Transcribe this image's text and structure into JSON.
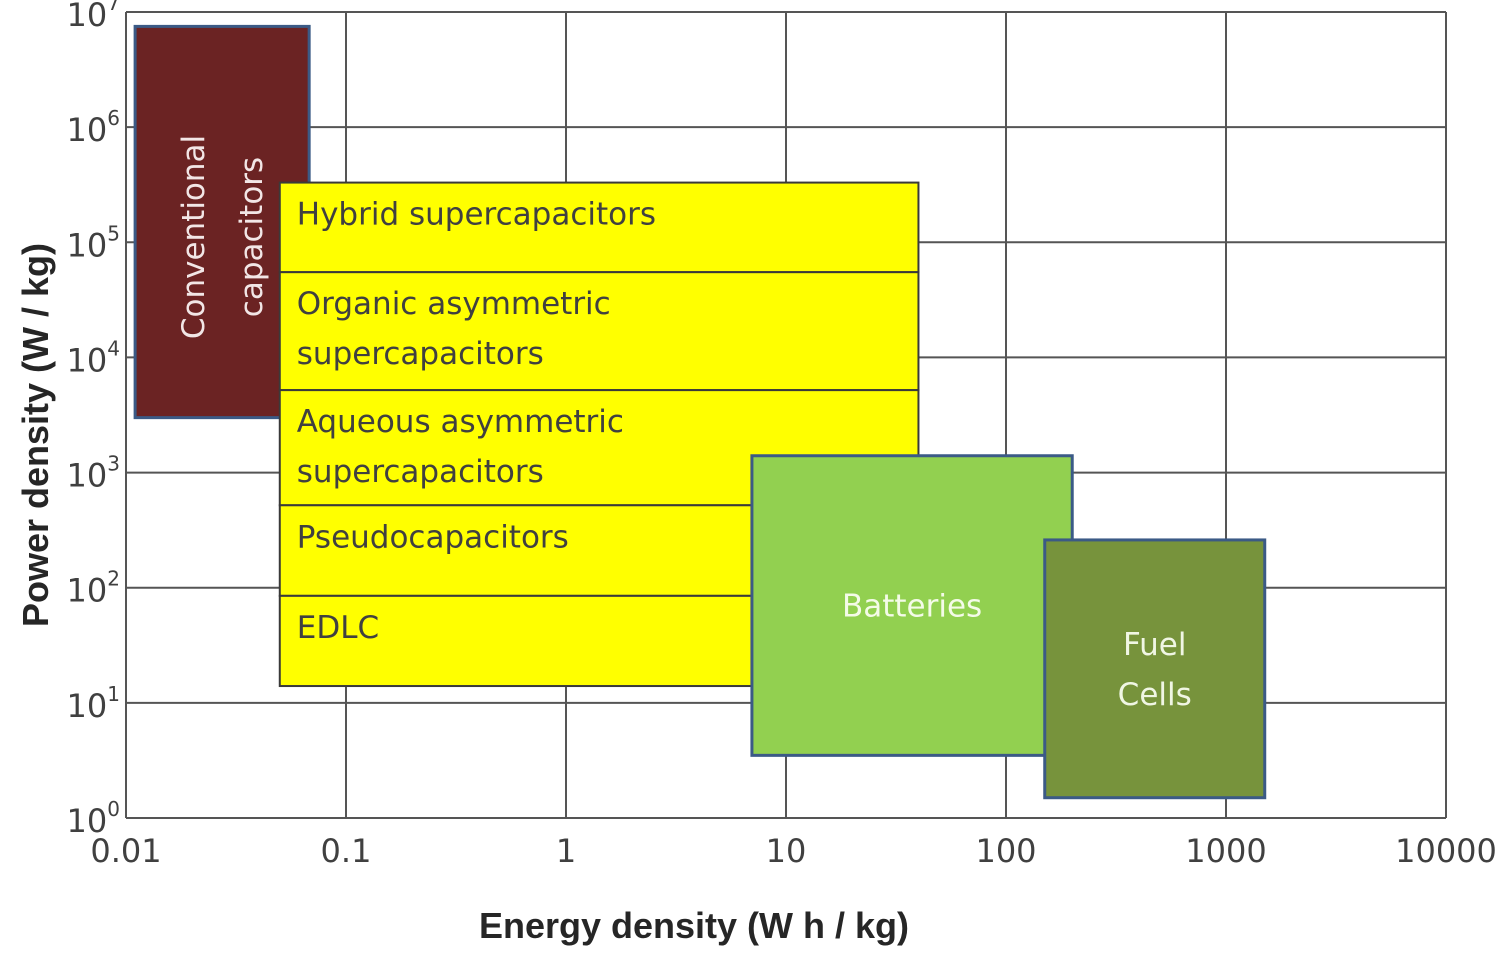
{
  "chart_data": {
    "type": "area",
    "title": "",
    "xlabel": "Energy density  (W h / kg)",
    "ylabel": "Power density (W / kg)",
    "xscale": "log",
    "yscale": "log",
    "xlim": [
      0.01,
      10000
    ],
    "ylim": [
      1,
      10000000
    ],
    "grid": true,
    "x_ticks": [
      "0.01",
      "0.1",
      "1",
      "10",
      "100",
      "1000",
      "10000"
    ],
    "y_ticks": [
      {
        "base": "10",
        "exp": "0"
      },
      {
        "base": "10",
        "exp": "1"
      },
      {
        "base": "10",
        "exp": "2"
      },
      {
        "base": "10",
        "exp": "3"
      },
      {
        "base": "10",
        "exp": "4"
      },
      {
        "base": "10",
        "exp": "5"
      },
      {
        "base": "10",
        "exp": "6"
      },
      {
        "base": "10",
        "exp": "7"
      }
    ],
    "regions": [
      {
        "label": [
          "Conventional",
          "capacitors"
        ],
        "x_range": [
          0.011,
          0.068
        ],
        "y_range": [
          3000,
          7500000
        ],
        "color": "#6b2323",
        "text_color": "#f2e6e6",
        "orientation": "vertical"
      },
      {
        "label": [
          "Hybrid supercapacitors"
        ],
        "x_range": [
          0.05,
          40
        ],
        "y_range": [
          55000,
          330000
        ],
        "color": "#ffff00",
        "text_color": "#404040"
      },
      {
        "label": [
          "Organic asymmetric",
          "supercapacitors"
        ],
        "x_range": [
          0.05,
          40
        ],
        "y_range": [
          5200,
          55000
        ],
        "color": "#ffff00",
        "text_color": "#404040"
      },
      {
        "label": [
          "Aqueous asymmetric",
          "supercapacitors"
        ],
        "x_range": [
          0.05,
          40
        ],
        "y_range": [
          520,
          5200
        ],
        "color": "#ffff00",
        "text_color": "#404040"
      },
      {
        "label": [
          "Pseudocapacitors"
        ],
        "x_range": [
          0.05,
          40
        ],
        "y_range": [
          85,
          520
        ],
        "color": "#ffff00",
        "text_color": "#404040"
      },
      {
        "label": [
          "EDLC"
        ],
        "x_range": [
          0.05,
          40
        ],
        "y_range": [
          14,
          85
        ],
        "color": "#ffff00",
        "text_color": "#404040"
      },
      {
        "label": [
          "Batteries"
        ],
        "x_range": [
          7,
          200
        ],
        "y_range": [
          3.5,
          1400
        ],
        "color": "#92d050",
        "text_color": "#f4fbe8"
      },
      {
        "label": [
          "Fuel",
          "Cells"
        ],
        "x_range": [
          150,
          1500
        ],
        "y_range": [
          1.5,
          260
        ],
        "color": "#77933c",
        "text_color": "#f0f6e4"
      }
    ]
  }
}
